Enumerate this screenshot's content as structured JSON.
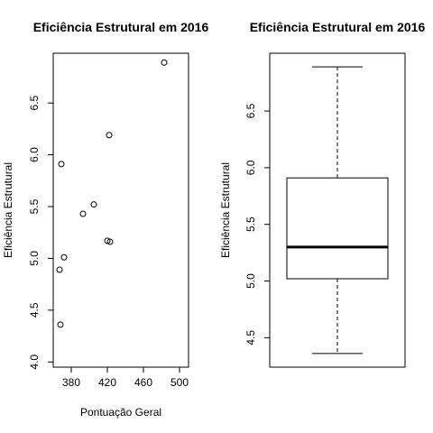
{
  "chart_data": [
    {
      "type": "scatter",
      "title": "Eficiência Estrutural em 2016",
      "xlabel": "Pontuação Geral",
      "ylabel": "Eficiência Estrutural",
      "xlim": [
        360,
        510
      ],
      "ylim": [
        3.95,
        6.98
      ],
      "x_ticks": [
        380,
        420,
        460,
        500
      ],
      "y_ticks": [
        4.0,
        4.5,
        5.0,
        5.5,
        6.0,
        6.5
      ],
      "x_tick_labels": [
        "380",
        "420",
        "460",
        "500"
      ],
      "y_tick_labels": [
        "4.0",
        "4.5",
        "5.0",
        "5.5",
        "6.0",
        "6.5"
      ],
      "points": [
        {
          "x": 367,
          "y": 4.89
        },
        {
          "x": 368,
          "y": 4.36
        },
        {
          "x": 369,
          "y": 5.91
        },
        {
          "x": 372,
          "y": 5.01
        },
        {
          "x": 393,
          "y": 5.43
        },
        {
          "x": 405,
          "y": 5.52
        },
        {
          "x": 420,
          "y": 5.17
        },
        {
          "x": 422,
          "y": 6.19
        },
        {
          "x": 423,
          "y": 5.16
        },
        {
          "x": 483,
          "y": 6.89
        }
      ]
    },
    {
      "type": "box",
      "title": "Eficiência Estrutural em 2016",
      "ylabel": "Eficiência Estrutural",
      "ylim": [
        4.24,
        7.01
      ],
      "y_ticks": [
        4.5,
        5.0,
        5.5,
        6.0,
        6.5
      ],
      "y_tick_labels": [
        "4.5",
        "5.0",
        "5.5",
        "6.0",
        "6.5"
      ],
      "stats": {
        "min": 4.36,
        "q1": 5.02,
        "median": 5.3,
        "q3": 5.91,
        "max": 6.89
      }
    }
  ]
}
